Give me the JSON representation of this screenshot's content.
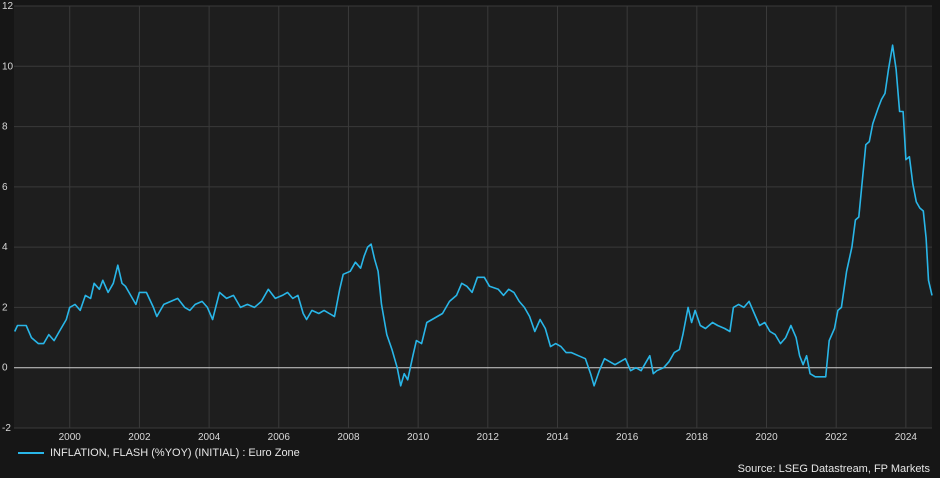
{
  "colors": {
    "background": "#161616",
    "plot_bg": "#1e1e1e",
    "grid": "#3a3a3a",
    "zero_line": "#d0d0d0",
    "series": "#29b6e8"
  },
  "legend": {
    "label": "INFLATION, FLASH (%YOY) (INITIAL) : Euro Zone"
  },
  "source": "Source: LSEG Datastream, FP Markets",
  "chart_data": {
    "type": "line",
    "title": "",
    "xlabel": "",
    "ylabel": "",
    "xlim": [
      1998.4,
      2024.75
    ],
    "ylim": [
      -2,
      12
    ],
    "y_ticks": [
      -2,
      0,
      2,
      4,
      6,
      8,
      10,
      12
    ],
    "x_ticks": [
      2000,
      2002,
      2004,
      2006,
      2008,
      2010,
      2012,
      2014,
      2016,
      2018,
      2020,
      2022,
      2024
    ],
    "grid": true,
    "legend_position": "bottom-left",
    "series": [
      {
        "name": "INFLATION, FLASH (%YOY) (INITIAL) : Euro Zone",
        "points": [
          [
            1998.42,
            1.2
          ],
          [
            1998.5,
            1.4
          ],
          [
            1998.75,
            1.4
          ],
          [
            1998.9,
            1.0
          ],
          [
            1999.1,
            0.8
          ],
          [
            1999.25,
            0.8
          ],
          [
            1999.4,
            1.1
          ],
          [
            1999.55,
            0.9
          ],
          [
            1999.7,
            1.2
          ],
          [
            1999.9,
            1.6
          ],
          [
            2000.0,
            2.0
          ],
          [
            2000.15,
            2.1
          ],
          [
            2000.3,
            1.9
          ],
          [
            2000.45,
            2.4
          ],
          [
            2000.6,
            2.3
          ],
          [
            2000.7,
            2.8
          ],
          [
            2000.85,
            2.6
          ],
          [
            2000.95,
            2.9
          ],
          [
            2001.1,
            2.5
          ],
          [
            2001.25,
            2.8
          ],
          [
            2001.38,
            3.4
          ],
          [
            2001.5,
            2.8
          ],
          [
            2001.6,
            2.7
          ],
          [
            2001.75,
            2.4
          ],
          [
            2001.9,
            2.1
          ],
          [
            2002.0,
            2.5
          ],
          [
            2002.2,
            2.5
          ],
          [
            2002.4,
            2.0
          ],
          [
            2002.5,
            1.7
          ],
          [
            2002.7,
            2.1
          ],
          [
            2002.9,
            2.2
          ],
          [
            2003.1,
            2.3
          ],
          [
            2003.3,
            2.0
          ],
          [
            2003.45,
            1.9
          ],
          [
            2003.6,
            2.1
          ],
          [
            2003.8,
            2.2
          ],
          [
            2003.95,
            2.0
          ],
          [
            2004.1,
            1.6
          ],
          [
            2004.3,
            2.5
          ],
          [
            2004.5,
            2.3
          ],
          [
            2004.7,
            2.4
          ],
          [
            2004.9,
            2.0
          ],
          [
            2005.1,
            2.1
          ],
          [
            2005.3,
            2.0
          ],
          [
            2005.5,
            2.2
          ],
          [
            2005.7,
            2.6
          ],
          [
            2005.9,
            2.3
          ],
          [
            2006.1,
            2.4
          ],
          [
            2006.25,
            2.5
          ],
          [
            2006.4,
            2.3
          ],
          [
            2006.55,
            2.4
          ],
          [
            2006.7,
            1.8
          ],
          [
            2006.8,
            1.6
          ],
          [
            2006.95,
            1.9
          ],
          [
            2007.15,
            1.8
          ],
          [
            2007.3,
            1.9
          ],
          [
            2007.45,
            1.8
          ],
          [
            2007.6,
            1.7
          ],
          [
            2007.75,
            2.6
          ],
          [
            2007.85,
            3.1
          ],
          [
            2008.05,
            3.2
          ],
          [
            2008.2,
            3.5
          ],
          [
            2008.35,
            3.3
          ],
          [
            2008.45,
            3.7
          ],
          [
            2008.55,
            4.0
          ],
          [
            2008.65,
            4.1
          ],
          [
            2008.75,
            3.6
          ],
          [
            2008.85,
            3.2
          ],
          [
            2008.95,
            2.1
          ],
          [
            2009.1,
            1.1
          ],
          [
            2009.25,
            0.6
          ],
          [
            2009.4,
            0.0
          ],
          [
            2009.5,
            -0.6
          ],
          [
            2009.6,
            -0.2
          ],
          [
            2009.7,
            -0.4
          ],
          [
            2009.85,
            0.4
          ],
          [
            2009.95,
            0.9
          ],
          [
            2010.1,
            0.8
          ],
          [
            2010.25,
            1.5
          ],
          [
            2010.4,
            1.6
          ],
          [
            2010.55,
            1.7
          ],
          [
            2010.7,
            1.8
          ],
          [
            2010.9,
            2.2
          ],
          [
            2011.1,
            2.4
          ],
          [
            2011.25,
            2.8
          ],
          [
            2011.4,
            2.7
          ],
          [
            2011.55,
            2.5
          ],
          [
            2011.7,
            3.0
          ],
          [
            2011.9,
            3.0
          ],
          [
            2012.05,
            2.7
          ],
          [
            2012.3,
            2.6
          ],
          [
            2012.45,
            2.4
          ],
          [
            2012.6,
            2.6
          ],
          [
            2012.75,
            2.5
          ],
          [
            2012.9,
            2.2
          ],
          [
            2013.05,
            2.0
          ],
          [
            2013.2,
            1.7
          ],
          [
            2013.35,
            1.2
          ],
          [
            2013.5,
            1.6
          ],
          [
            2013.65,
            1.3
          ],
          [
            2013.8,
            0.7
          ],
          [
            2013.95,
            0.8
          ],
          [
            2014.1,
            0.7
          ],
          [
            2014.25,
            0.5
          ],
          [
            2014.4,
            0.5
          ],
          [
            2014.6,
            0.4
          ],
          [
            2014.8,
            0.3
          ],
          [
            2014.95,
            -0.2
          ],
          [
            2015.05,
            -0.6
          ],
          [
            2015.2,
            -0.1
          ],
          [
            2015.35,
            0.3
          ],
          [
            2015.5,
            0.2
          ],
          [
            2015.65,
            0.1
          ],
          [
            2015.8,
            0.2
          ],
          [
            2015.95,
            0.3
          ],
          [
            2016.1,
            -0.1
          ],
          [
            2016.25,
            0.0
          ],
          [
            2016.4,
            -0.1
          ],
          [
            2016.55,
            0.2
          ],
          [
            2016.65,
            0.4
          ],
          [
            2016.75,
            -0.2
          ],
          [
            2016.85,
            -0.1
          ],
          [
            2017.05,
            0.0
          ],
          [
            2017.2,
            0.2
          ],
          [
            2017.35,
            0.5
          ],
          [
            2017.5,
            0.6
          ],
          [
            2017.6,
            1.1
          ],
          [
            2017.75,
            2.0
          ],
          [
            2017.85,
            1.5
          ],
          [
            2017.95,
            1.9
          ],
          [
            2018.1,
            1.4
          ],
          [
            2018.25,
            1.3
          ],
          [
            2018.45,
            1.5
          ],
          [
            2018.6,
            1.4
          ],
          [
            2018.8,
            1.3
          ],
          [
            2018.95,
            1.2
          ],
          [
            2019.05,
            2.0
          ],
          [
            2019.2,
            2.1
          ],
          [
            2019.35,
            2.0
          ],
          [
            2019.5,
            2.2
          ],
          [
            2019.65,
            1.8
          ],
          [
            2019.8,
            1.4
          ],
          [
            2019.95,
            1.5
          ],
          [
            2020.1,
            1.2
          ],
          [
            2020.25,
            1.1
          ],
          [
            2020.4,
            0.8
          ],
          [
            2020.55,
            1.0
          ],
          [
            2020.7,
            1.4
          ],
          [
            2020.85,
            1.0
          ],
          [
            2020.95,
            0.4
          ],
          [
            2021.05,
            0.1
          ],
          [
            2021.15,
            0.4
          ],
          [
            2021.25,
            -0.2
          ],
          [
            2021.4,
            -0.3
          ],
          [
            2021.55,
            -0.3
          ],
          [
            2021.7,
            -0.3
          ],
          [
            2021.8,
            0.9
          ],
          [
            2021.95,
            1.3
          ],
          [
            2022.05,
            1.9
          ],
          [
            2022.15,
            2.0
          ],
          [
            2022.3,
            3.2
          ],
          [
            2022.45,
            4.0
          ],
          [
            2022.55,
            4.9
          ],
          [
            2022.65,
            5.0
          ],
          [
            2022.75,
            6.2
          ],
          [
            2022.85,
            7.4
          ],
          [
            2022.95,
            7.5
          ],
          [
            2023.05,
            8.1
          ],
          [
            2023.2,
            8.6
          ],
          [
            2023.3,
            8.9
          ],
          [
            2023.4,
            9.1
          ],
          [
            2023.5,
            9.9
          ],
          [
            2023.62,
            10.7
          ],
          [
            2023.72,
            9.9
          ],
          [
            2023.82,
            8.5
          ],
          [
            2023.92,
            8.5
          ],
          [
            2024.0,
            6.9
          ],
          [
            2024.1,
            7.0
          ],
          [
            2024.2,
            6.1
          ],
          [
            2024.3,
            5.5
          ],
          [
            2024.4,
            5.3
          ],
          [
            2024.5,
            5.2
          ],
          [
            2024.58,
            4.3
          ],
          [
            2024.65,
            2.9
          ],
          [
            2024.75,
            2.4
          ]
        ]
      }
    ]
  }
}
